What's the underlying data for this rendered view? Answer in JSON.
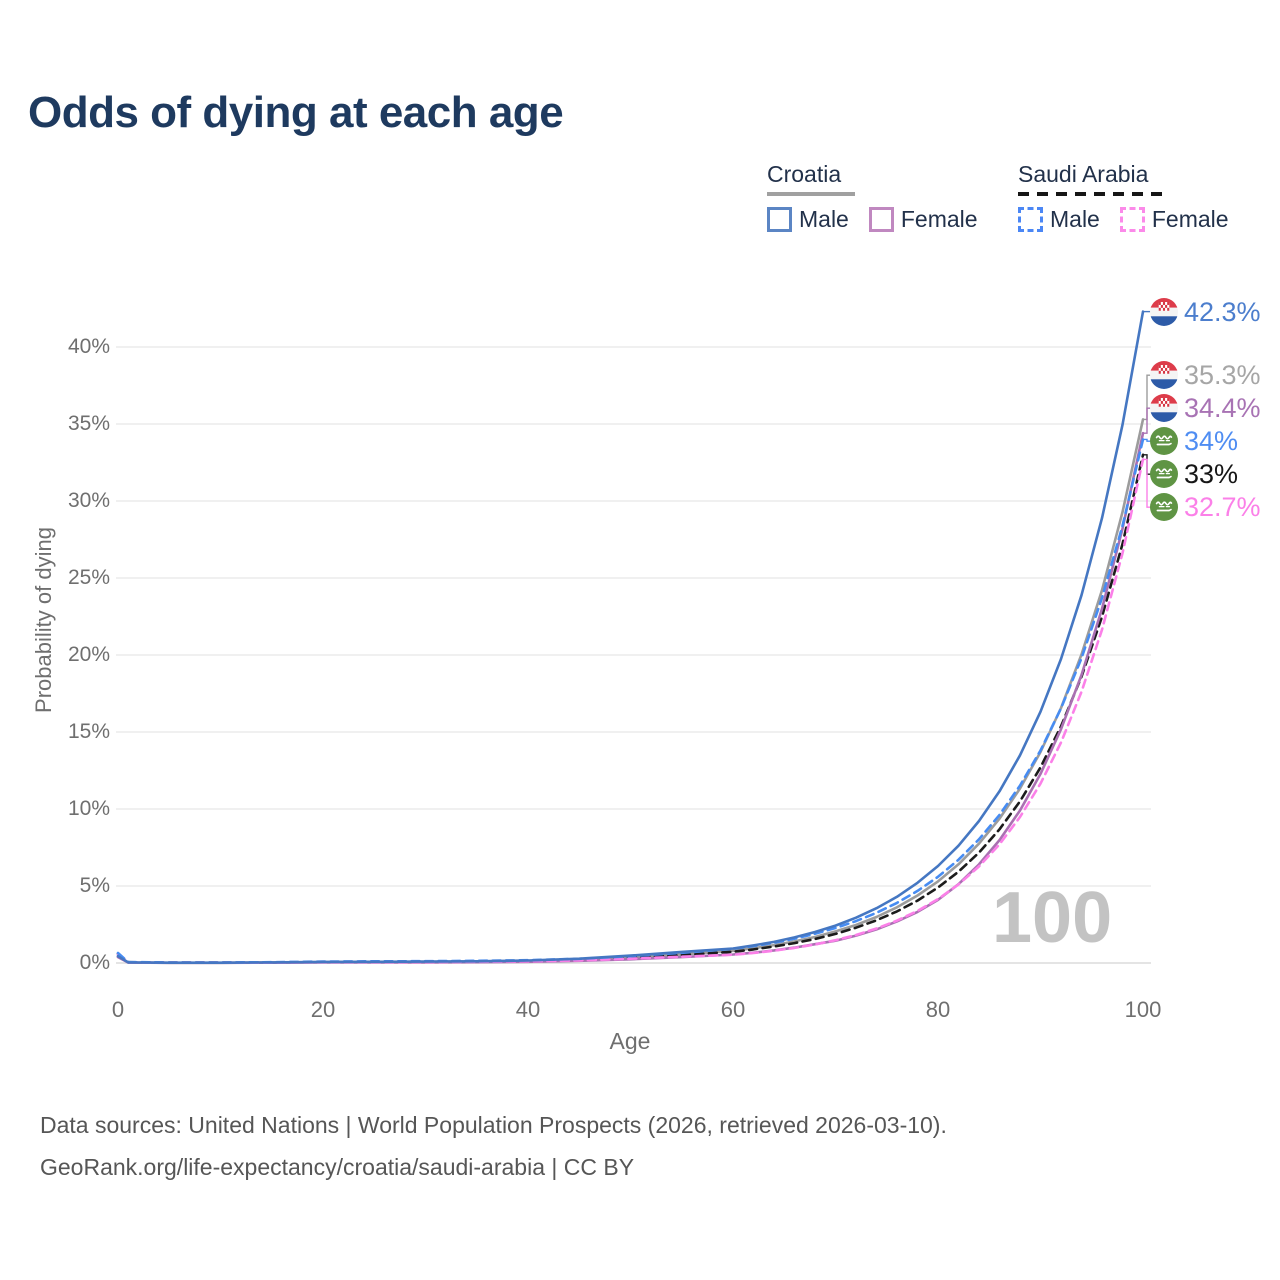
{
  "title": "Odds of dying at each age",
  "colors": {
    "title_text": "#1e3a5f",
    "axis_text": "#6f6f6f",
    "grid": "#ebebeb",
    "zero_line": "#dcdcdc",
    "watermark": "#c3c3c3",
    "footer_text": "#565656"
  },
  "legend": {
    "groups": [
      {
        "label": "Croatia",
        "underline_style": "solid",
        "underline_color": "#a0a0a0",
        "items": [
          {
            "label": "Male",
            "color": "#5b85c4",
            "dash": false
          },
          {
            "label": "Female",
            "color": "#c088c0",
            "dash": false
          }
        ]
      },
      {
        "label": "Saudi Arabia",
        "underline_style": "dashed",
        "underline_color": "#161616",
        "items": [
          {
            "label": "Male",
            "color": "#4b87f5",
            "dash": true
          },
          {
            "label": "Female",
            "color": "#fb8ae9",
            "dash": true
          }
        ]
      }
    ]
  },
  "chart_data": {
    "type": "line",
    "title": "Odds of dying at each age",
    "xlabel": "Age",
    "ylabel": "Probability of dying",
    "xlim": [
      0,
      100
    ],
    "ylim": [
      0,
      43
    ],
    "x_ticks": [
      0,
      20,
      40,
      60,
      80,
      100
    ],
    "y_ticks": [
      0,
      5,
      10,
      15,
      20,
      25,
      30,
      35,
      40
    ],
    "grid": "horizontal",
    "legend_position": "top-right",
    "watermark": "100",
    "ages": [
      0,
      1,
      5,
      10,
      15,
      20,
      25,
      30,
      35,
      40,
      45,
      50,
      55,
      60,
      62,
      64,
      66,
      68,
      70,
      72,
      74,
      76,
      78,
      80,
      82,
      84,
      86,
      88,
      90,
      92,
      94,
      96,
      98,
      100
    ],
    "series": [
      {
        "name": "Croatia Male",
        "country": "croatia",
        "sex": "male",
        "line": "solid",
        "color": "#4577c2",
        "label_color": "#4c7ecd",
        "end_label": "42.3%",
        "end_value": 42.3,
        "values": [
          0.45,
          0.04,
          0.02,
          0.02,
          0.04,
          0.07,
          0.08,
          0.09,
          0.11,
          0.16,
          0.28,
          0.48,
          0.72,
          0.94,
          1.14,
          1.37,
          1.66,
          2.01,
          2.43,
          2.94,
          3.56,
          4.3,
          5.21,
          6.3,
          7.62,
          9.22,
          11.15,
          13.49,
          16.32,
          19.74,
          23.88,
          28.89,
          34.95,
          42.3
        ]
      },
      {
        "name": "Croatia Both sexes",
        "country": "croatia",
        "sex": "both",
        "line": "solid",
        "color": "#9c9c9c",
        "label_color": "#a6a6a6",
        "end_label": "35.3%",
        "end_value": 35.3,
        "values": [
          0.42,
          0.03,
          0.016,
          0.016,
          0.03,
          0.05,
          0.06,
          0.07,
          0.09,
          0.12,
          0.21,
          0.36,
          0.56,
          0.79,
          0.96,
          1.16,
          1.4,
          1.69,
          2.05,
          2.47,
          2.99,
          3.62,
          4.38,
          5.3,
          6.41,
          7.75,
          9.37,
          11.33,
          13.7,
          16.56,
          20.03,
          24.21,
          29.28,
          35.3
        ]
      },
      {
        "name": "Croatia Female",
        "country": "croatia",
        "sex": "female",
        "line": "solid",
        "color": "#aa70b2",
        "label_color": "#a873b4",
        "end_label": "34.4%",
        "end_value": 34.4,
        "values": [
          0.38,
          0.025,
          0.013,
          0.013,
          0.02,
          0.03,
          0.035,
          0.04,
          0.055,
          0.08,
          0.14,
          0.24,
          0.38,
          0.55,
          0.67,
          0.82,
          1.0,
          1.22,
          1.45,
          1.78,
          2.18,
          2.7,
          3.32,
          4.1,
          5.12,
          6.4,
          7.98,
          9.9,
          12.28,
          15.18,
          18.7,
          23.0,
          28.2,
          34.4
        ]
      },
      {
        "name": "Saudi Arabia Male",
        "country": "saudi",
        "sex": "male",
        "line": "dashed",
        "color": "#478cf2",
        "label_color": "#4f8df2",
        "end_label": "34%",
        "end_value": 34,
        "values": [
          0.65,
          0.06,
          0.03,
          0.03,
          0.05,
          0.09,
          0.11,
          0.12,
          0.14,
          0.18,
          0.27,
          0.44,
          0.66,
          0.92,
          1.1,
          1.32,
          1.58,
          1.9,
          2.27,
          2.72,
          3.26,
          3.9,
          4.68,
          5.6,
          6.71,
          8.03,
          9.62,
          11.52,
          13.8,
          16.53,
          19.79,
          23.71,
          28.39,
          34.0
        ]
      },
      {
        "name": "Saudi Arabia Both sexes",
        "country": "saudi",
        "sex": "both",
        "line": "dashed",
        "color": "#1c1c1c",
        "label_color": "#161616",
        "end_label": "33%",
        "end_value": 33,
        "values": [
          0.6,
          0.05,
          0.026,
          0.026,
          0.04,
          0.06,
          0.07,
          0.08,
          0.1,
          0.13,
          0.21,
          0.34,
          0.52,
          0.73,
          0.88,
          1.07,
          1.29,
          1.56,
          1.89,
          2.29,
          2.77,
          3.35,
          4.05,
          4.9,
          5.93,
          7.17,
          8.68,
          10.5,
          12.7,
          15.37,
          18.59,
          22.49,
          27.21,
          33.0
        ]
      },
      {
        "name": "Saudi Arabia Female",
        "country": "saudi",
        "sex": "female",
        "line": "dashed",
        "color": "#fb80e8",
        "label_color": "#fb80e8",
        "end_label": "32.7%",
        "end_value": 32.7,
        "values": [
          0.55,
          0.045,
          0.023,
          0.023,
          0.035,
          0.05,
          0.055,
          0.06,
          0.08,
          0.11,
          0.17,
          0.28,
          0.41,
          0.53,
          0.65,
          0.8,
          0.98,
          1.2,
          1.48,
          1.82,
          2.24,
          2.75,
          3.38,
          4.15,
          5.1,
          6.27,
          7.71,
          9.48,
          11.65,
          14.32,
          17.61,
          21.64,
          26.61,
          32.7
        ]
      }
    ]
  },
  "footer": {
    "line1": "Data sources: United Nations | World Population Prospects (2026, retrieved 2026-03-10).",
    "line2": "GeoRank.org/life-expectancy/croatia/saudi-arabia | CC BY"
  }
}
